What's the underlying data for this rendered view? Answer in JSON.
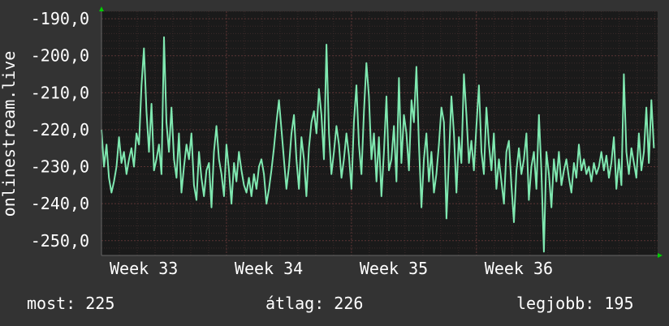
{
  "chart_data": {
    "type": "line",
    "ylabel": "onlinestream.live",
    "ylim": [
      -254,
      -188
    ],
    "yticks": [
      -190,
      -200,
      -210,
      -220,
      -230,
      -240,
      -250
    ],
    "ytick_labels": [
      "-190,0",
      "-200,0",
      "-210,0",
      "-220,0",
      "-230,0",
      "-240,0",
      "-250,0"
    ],
    "x_range": [
      0,
      4.45
    ],
    "xtick_labels": [
      "Week 33",
      "Week 34",
      "Week 35",
      "Week 36"
    ],
    "xtick_positions": [
      0,
      1,
      2,
      3
    ],
    "grid": true,
    "colors": {
      "background": "#333333",
      "plot_area": "#1a1a1a",
      "line": "#7fe8b0",
      "grid_major": "#5a3434",
      "grid_minor": "#3a2a2a",
      "axis_arrow": "#00cc00"
    },
    "series": [
      {
        "values": [
          [
            0.0,
            -220
          ],
          [
            0.02,
            -230
          ],
          [
            0.04,
            -224
          ],
          [
            0.06,
            -233
          ],
          [
            0.08,
            -237
          ],
          [
            0.1,
            -234
          ],
          [
            0.12,
            -230
          ],
          [
            0.14,
            -222
          ],
          [
            0.16,
            -229
          ],
          [
            0.18,
            -226
          ],
          [
            0.2,
            -232
          ],
          [
            0.22,
            -228
          ],
          [
            0.24,
            -225
          ],
          [
            0.26,
            -230
          ],
          [
            0.28,
            -221
          ],
          [
            0.3,
            -224
          ],
          [
            0.32,
            -208
          ],
          [
            0.34,
            -198
          ],
          [
            0.36,
            -215
          ],
          [
            0.38,
            -226
          ],
          [
            0.4,
            -213
          ],
          [
            0.42,
            -231
          ],
          [
            0.44,
            -228
          ],
          [
            0.46,
            -224
          ],
          [
            0.48,
            -232
          ],
          [
            0.5,
            -195
          ],
          [
            0.52,
            -218
          ],
          [
            0.54,
            -226
          ],
          [
            0.56,
            -214
          ],
          [
            0.58,
            -228
          ],
          [
            0.6,
            -233
          ],
          [
            0.62,
            -221
          ],
          [
            0.64,
            -237
          ],
          [
            0.66,
            -230
          ],
          [
            0.68,
            -224
          ],
          [
            0.7,
            -228
          ],
          [
            0.72,
            -221
          ],
          [
            0.74,
            -235
          ],
          [
            0.76,
            -239
          ],
          [
            0.78,
            -226
          ],
          [
            0.8,
            -233
          ],
          [
            0.82,
            -238
          ],
          [
            0.84,
            -231
          ],
          [
            0.86,
            -229
          ],
          [
            0.88,
            -241
          ],
          [
            0.9,
            -226
          ],
          [
            0.92,
            -219
          ],
          [
            0.94,
            -228
          ],
          [
            0.96,
            -232
          ],
          [
            0.98,
            -238
          ],
          [
            1.0,
            -224
          ],
          [
            1.02,
            -231
          ],
          [
            1.04,
            -240
          ],
          [
            1.06,
            -229
          ],
          [
            1.08,
            -234
          ],
          [
            1.1,
            -226
          ],
          [
            1.12,
            -231
          ],
          [
            1.14,
            -235
          ],
          [
            1.16,
            -237
          ],
          [
            1.18,
            -233
          ],
          [
            1.2,
            -238
          ],
          [
            1.22,
            -232
          ],
          [
            1.24,
            -236
          ],
          [
            1.26,
            -230
          ],
          [
            1.28,
            -228
          ],
          [
            1.3,
            -232
          ],
          [
            1.32,
            -240
          ],
          [
            1.34,
            -236
          ],
          [
            1.36,
            -231
          ],
          [
            1.38,
            -225
          ],
          [
            1.4,
            -218
          ],
          [
            1.42,
            -212
          ],
          [
            1.44,
            -220
          ],
          [
            1.46,
            -228
          ],
          [
            1.48,
            -236
          ],
          [
            1.5,
            -230
          ],
          [
            1.52,
            -221
          ],
          [
            1.54,
            -216
          ],
          [
            1.56,
            -228
          ],
          [
            1.58,
            -236
          ],
          [
            1.6,
            -222
          ],
          [
            1.62,
            -228
          ],
          [
            1.64,
            -238
          ],
          [
            1.66,
            -225
          ],
          [
            1.68,
            -218
          ],
          [
            1.7,
            -215
          ],
          [
            1.72,
            -221
          ],
          [
            1.74,
            -209
          ],
          [
            1.76,
            -216
          ],
          [
            1.78,
            -228
          ],
          [
            1.8,
            -197
          ],
          [
            1.82,
            -221
          ],
          [
            1.84,
            -232
          ],
          [
            1.86,
            -226
          ],
          [
            1.88,
            -219
          ],
          [
            1.9,
            -224
          ],
          [
            1.92,
            -233
          ],
          [
            1.94,
            -228
          ],
          [
            1.96,
            -221
          ],
          [
            1.98,
            -227
          ],
          [
            2.0,
            -236
          ],
          [
            2.02,
            -218
          ],
          [
            2.04,
            -208
          ],
          [
            2.06,
            -224
          ],
          [
            2.08,
            -232
          ],
          [
            2.1,
            -215
          ],
          [
            2.12,
            -202
          ],
          [
            2.14,
            -211
          ],
          [
            2.16,
            -228
          ],
          [
            2.18,
            -221
          ],
          [
            2.2,
            -234
          ],
          [
            2.22,
            -222
          ],
          [
            2.24,
            -238
          ],
          [
            2.26,
            -226
          ],
          [
            2.28,
            -211
          ],
          [
            2.3,
            -231
          ],
          [
            2.32,
            -228
          ],
          [
            2.34,
            -219
          ],
          [
            2.36,
            -234
          ],
          [
            2.38,
            -206
          ],
          [
            2.4,
            -229
          ],
          [
            2.42,
            -216
          ],
          [
            2.44,
            -221
          ],
          [
            2.46,
            -231
          ],
          [
            2.48,
            -212
          ],
          [
            2.5,
            -218
          ],
          [
            2.52,
            -203
          ],
          [
            2.54,
            -224
          ],
          [
            2.56,
            -241
          ],
          [
            2.58,
            -228
          ],
          [
            2.6,
            -221
          ],
          [
            2.62,
            -234
          ],
          [
            2.64,
            -226
          ],
          [
            2.66,
            -237
          ],
          [
            2.68,
            -232
          ],
          [
            2.7,
            -224
          ],
          [
            2.72,
            -214
          ],
          [
            2.74,
            -218
          ],
          [
            2.76,
            -244
          ],
          [
            2.78,
            -228
          ],
          [
            2.8,
            -211
          ],
          [
            2.82,
            -221
          ],
          [
            2.84,
            -237
          ],
          [
            2.86,
            -222
          ],
          [
            2.88,
            -229
          ],
          [
            2.9,
            -205
          ],
          [
            2.92,
            -216
          ],
          [
            2.94,
            -229
          ],
          [
            2.96,
            -223
          ],
          [
            2.98,
            -231
          ],
          [
            3.0,
            -219
          ],
          [
            3.02,
            -208
          ],
          [
            3.04,
            -226
          ],
          [
            3.06,
            -232
          ],
          [
            3.08,
            -214
          ],
          [
            3.1,
            -224
          ],
          [
            3.12,
            -231
          ],
          [
            3.14,
            -221
          ],
          [
            3.16,
            -236
          ],
          [
            3.18,
            -228
          ],
          [
            3.2,
            -234
          ],
          [
            3.22,
            -240
          ],
          [
            3.24,
            -226
          ],
          [
            3.26,
            -223
          ],
          [
            3.28,
            -235
          ],
          [
            3.3,
            -245
          ],
          [
            3.32,
            -231
          ],
          [
            3.34,
            -225
          ],
          [
            3.36,
            -232
          ],
          [
            3.38,
            -228
          ],
          [
            3.4,
            -221
          ],
          [
            3.42,
            -239
          ],
          [
            3.44,
            -230
          ],
          [
            3.46,
            -226
          ],
          [
            3.48,
            -236
          ],
          [
            3.5,
            -216
          ],
          [
            3.52,
            -231
          ],
          [
            3.54,
            -253
          ],
          [
            3.56,
            -226
          ],
          [
            3.58,
            -232
          ],
          [
            3.6,
            -241
          ],
          [
            3.62,
            -228
          ],
          [
            3.64,
            -234
          ],
          [
            3.66,
            -226
          ],
          [
            3.68,
            -235
          ],
          [
            3.7,
            -231
          ],
          [
            3.72,
            -228
          ],
          [
            3.74,
            -233
          ],
          [
            3.76,
            -237
          ],
          [
            3.78,
            -229
          ],
          [
            3.8,
            -233
          ],
          [
            3.82,
            -224
          ],
          [
            3.84,
            -231
          ],
          [
            3.86,
            -228
          ],
          [
            3.88,
            -232
          ],
          [
            3.9,
            -230
          ],
          [
            3.92,
            -234
          ],
          [
            3.94,
            -229
          ],
          [
            3.96,
            -232
          ],
          [
            3.98,
            -230
          ],
          [
            4.0,
            -226
          ],
          [
            4.02,
            -231
          ],
          [
            4.04,
            -227
          ],
          [
            4.06,
            -233
          ],
          [
            4.08,
            -229
          ],
          [
            4.1,
            -222
          ],
          [
            4.12,
            -236
          ],
          [
            4.14,
            -228
          ],
          [
            4.16,
            -235
          ],
          [
            4.18,
            -205
          ],
          [
            4.2,
            -226
          ],
          [
            4.22,
            -232
          ],
          [
            4.24,
            -225
          ],
          [
            4.26,
            -229
          ],
          [
            4.28,
            -233
          ],
          [
            4.3,
            -221
          ],
          [
            4.32,
            -231
          ],
          [
            4.34,
            -226
          ],
          [
            4.36,
            -214
          ],
          [
            4.38,
            -229
          ],
          [
            4.4,
            -212
          ],
          [
            4.42,
            -225
          ]
        ]
      }
    ]
  },
  "stats": {
    "now": "most: 225",
    "avg": "átlag: 226",
    "best": "legjobb: 195"
  }
}
